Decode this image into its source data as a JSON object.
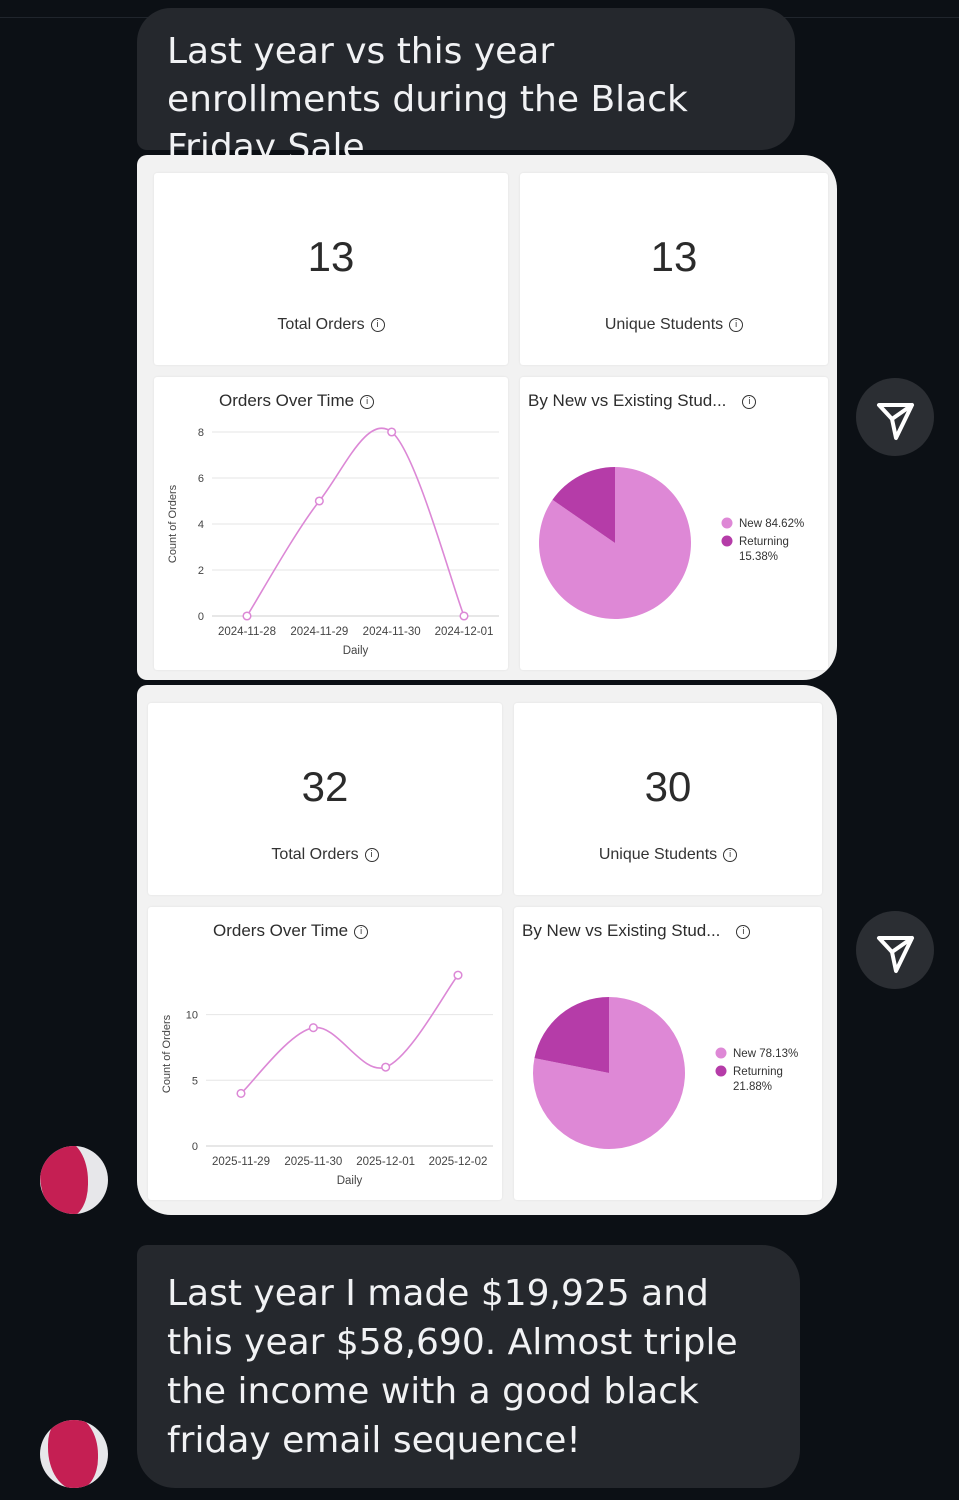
{
  "messages": {
    "top": "Last year vs this year enrollments during the Black Friday Sale",
    "bottom": "Last year I made $19,925 and this year $58,690. Almost triple the income with a good black friday email sequence!"
  },
  "dashboards": [
    {
      "total_orders": {
        "value": "13",
        "label": "Total Orders"
      },
      "unique_students": {
        "value": "13",
        "label": "Unique Students"
      },
      "orders_chart_title": "Orders Over Time",
      "pie_title": "By New vs Existing Stud...",
      "pie_legend": [
        {
          "label": "New 84.62%",
          "label2": "",
          "color": "#de88d6"
        },
        {
          "label": "Returning",
          "label2": "15.38%",
          "color": "#b53ca8"
        }
      ]
    },
    {
      "total_orders": {
        "value": "32",
        "label": "Total Orders"
      },
      "unique_students": {
        "value": "30",
        "label": "Unique Students"
      },
      "orders_chart_title": "Orders Over Time",
      "pie_title": "By New vs Existing Stud...",
      "pie_legend": [
        {
          "label": "New 78.13%",
          "label2": "",
          "color": "#de88d6"
        },
        {
          "label": "Returning",
          "label2": "21.88%",
          "color": "#b53ca8"
        }
      ]
    }
  ],
  "icons": {
    "info": "info-icon",
    "send": "send-icon",
    "avatar": "avatar"
  },
  "colors": {
    "line": "#dc88d6",
    "pie_new": "#de88d6",
    "pie_returning": "#b53ca8",
    "bubble": "#25282d"
  },
  "chart_data": [
    {
      "type": "line",
      "title": "Orders Over Time",
      "xlabel": "Daily",
      "ylabel": "Count of Orders",
      "categories": [
        "2024-11-28",
        "2024-11-29",
        "2024-11-30",
        "2024-12-01"
      ],
      "values": [
        0,
        5,
        8,
        0
      ],
      "yticks": [
        0,
        2,
        4,
        6,
        8
      ],
      "ylim": [
        0,
        8
      ]
    },
    {
      "type": "pie",
      "title": "By New vs Existing Stud...",
      "labels": [
        "New",
        "Returning"
      ],
      "values": [
        84.62,
        15.38
      ]
    },
    {
      "type": "line",
      "title": "Orders Over Time",
      "xlabel": "Daily",
      "ylabel": "Count of Orders",
      "categories": [
        "2025-11-29",
        "2025-11-30",
        "2025-12-01",
        "2025-12-02"
      ],
      "values": [
        4,
        9,
        6,
        13
      ],
      "yticks": [
        0,
        5,
        10
      ],
      "ylim": [
        0,
        14
      ]
    },
    {
      "type": "pie",
      "title": "By New vs Existing Stud...",
      "labels": [
        "New",
        "Returning"
      ],
      "values": [
        78.13,
        21.88
      ]
    }
  ]
}
